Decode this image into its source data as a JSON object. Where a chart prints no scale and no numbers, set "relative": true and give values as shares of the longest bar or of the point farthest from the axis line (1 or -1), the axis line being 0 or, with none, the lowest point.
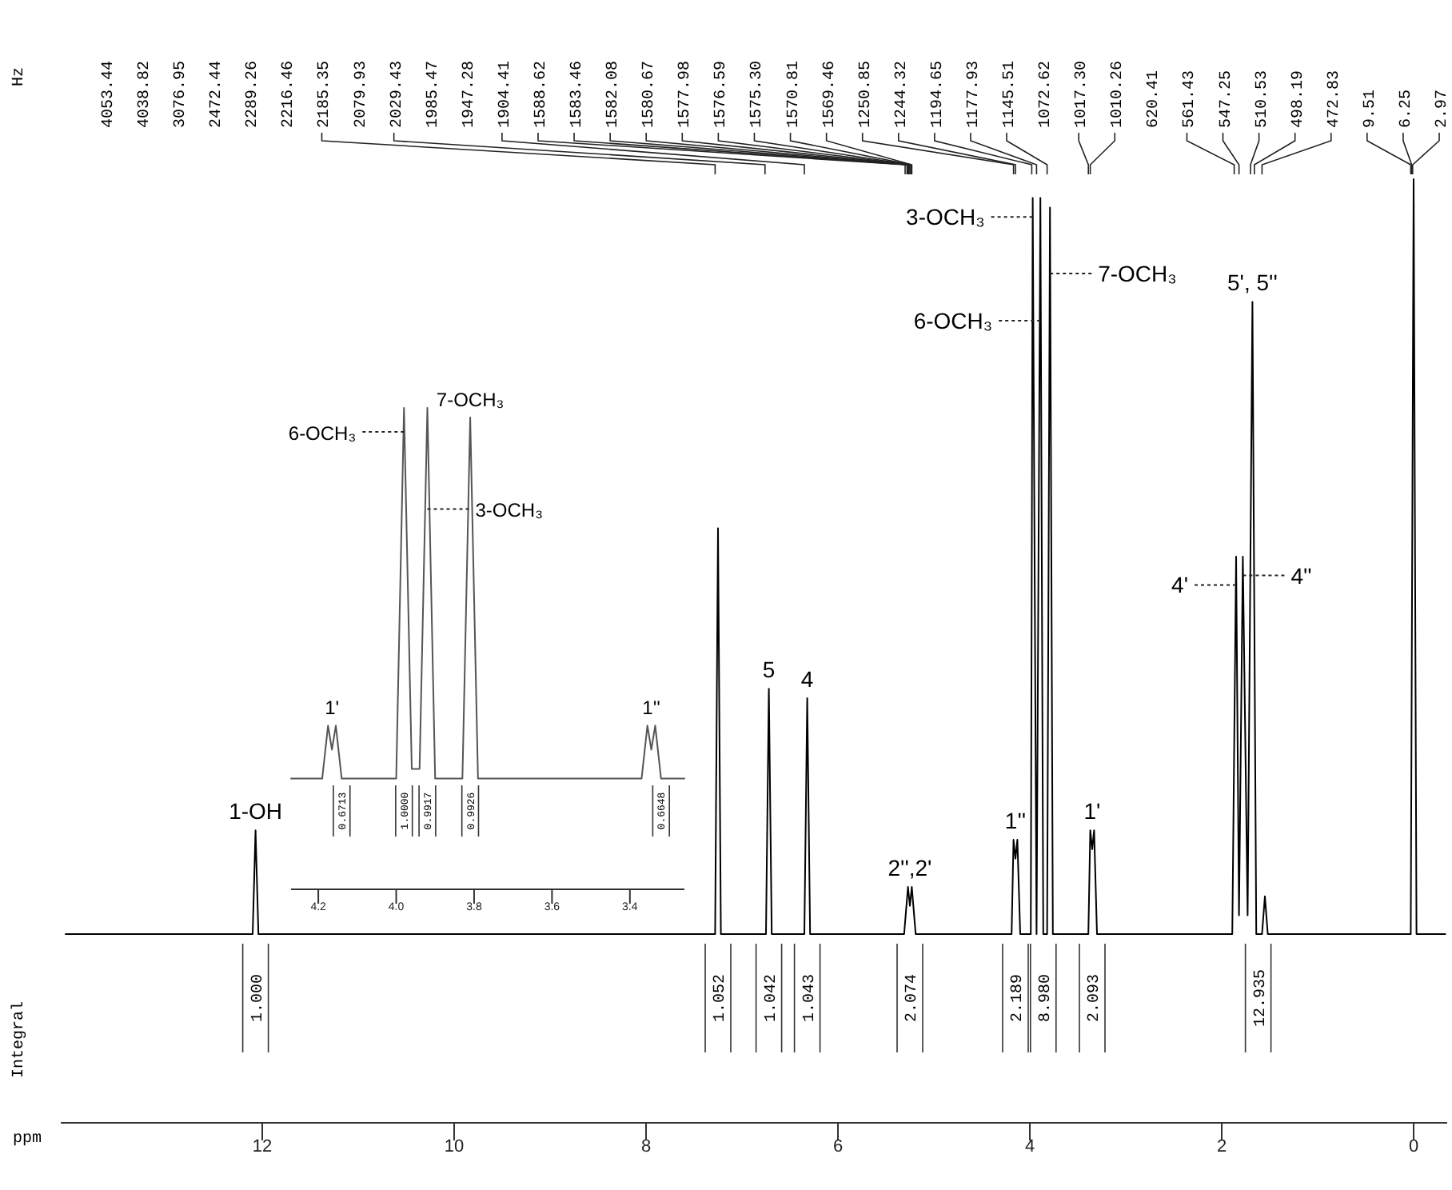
{
  "chart_data": [
    {
      "type": "line",
      "relative": true,
      "xlabel": "ppm",
      "color": "#000000",
      "tick_labels": "x",
      "x": [
        14.05,
        12.1,
        12.07,
        12.04,
        7.28,
        7.25,
        7.22,
        6.75,
        6.72,
        6.69,
        6.35,
        6.32,
        6.29,
        5.31,
        5.27,
        5.25,
        5.23,
        5.19,
        4.19,
        4.17,
        4.15,
        4.13,
        4.1,
        3.99,
        3.97,
        3.93,
        3.89,
        3.86,
        3.82,
        3.79,
        3.76,
        3.39,
        3.37,
        3.35,
        3.33,
        3.3,
        1.89,
        1.85,
        1.82,
        1.78,
        1.73,
        1.68,
        1.64,
        1.58,
        1.55,
        1.52,
        0.03,
        0,
        -0.03,
        -0.33
      ],
      "values": [
        0.2,
        0.2,
        0.31,
        0.2,
        0.2,
        0.63,
        0.2,
        0.2,
        0.46,
        0.2,
        0.2,
        0.45,
        0.2,
        0.2,
        0.25,
        0.23,
        0.25,
        0.2,
        0.2,
        0.3,
        0.28,
        0.3,
        0.2,
        0.2,
        0.98,
        0.2,
        0.98,
        0.2,
        0.2,
        0.97,
        0.2,
        0.2,
        0.31,
        0.29,
        0.31,
        0.2,
        0.2,
        0.6,
        0.22,
        0.6,
        0.22,
        0.87,
        0.2,
        0.2,
        0.24,
        0.2,
        0.2,
        1,
        0.2,
        0.2
      ],
      "xlim": [
        14.1,
        -0.35
      ],
      "xticks": [
        12,
        10,
        8,
        6,
        4,
        2,
        0
      ],
      "annotations": [
        "Hz",
        "Integral",
        "4053.44",
        "4038.82",
        "3076.95",
        "2472.44",
        "2289.26",
        "2216.46",
        {
          "text": "2185.35",
          "x": 7.28
        },
        "2079.93",
        {
          "text": "2029.43",
          "x": 6.76
        },
        "1985.47",
        "1947.28",
        {
          "text": "1904.41",
          "x": 6.35
        },
        {
          "text": "1588.62",
          "x": 5.3
        },
        {
          "text": "1583.46",
          "x": 5.28
        },
        {
          "text": "1582.08",
          "x": 5.27
        },
        {
          "text": "1580.67",
          "x": 5.27
        },
        {
          "text": "1577.98",
          "x": 5.26
        },
        {
          "text": "1576.59",
          "x": 5.26
        },
        {
          "text": "1575.30",
          "x": 5.25
        },
        {
          "text": "1570.81",
          "x": 5.24
        },
        {
          "text": "1569.46",
          "x": 5.23
        },
        {
          "text": "1250.85",
          "x": 4.17
        },
        {
          "text": "1244.32",
          "x": 4.15
        },
        {
          "text": "1194.65",
          "x": 3.98
        },
        {
          "text": "1177.93",
          "x": 3.93
        },
        {
          "text": "1145.51",
          "x": 3.82
        },
        "1072.62",
        {
          "text": "1017.30",
          "x": 3.39
        },
        {
          "text": "1010.26",
          "x": 3.37
        },
        "620.41",
        {
          "text": "561.43",
          "x": 1.87
        },
        {
          "text": "547.25",
          "x": 1.82
        },
        {
          "text": "510.53",
          "x": 1.7
        },
        {
          "text": "498.19",
          "x": 1.66
        },
        {
          "text": "472.83",
          "x": 1.58
        },
        {
          "text": "9.51",
          "x": 0.03
        },
        {
          "text": "6.25",
          "x": 0.02
        },
        {
          "text": "2.97",
          "x": 0.01
        },
        {
          "text": "1-OH",
          "x": 12.07,
          "y": 0.31
        },
        {
          "text": "5",
          "x": 6.72,
          "y": 0.46
        },
        {
          "text": "4",
          "x": 6.32,
          "y": 0.45
        },
        {
          "text": "2'',2'",
          "x": 5.25,
          "y": 0.25
        },
        {
          "text": "1''",
          "x": 4.15,
          "y": 0.3
        },
        {
          "text": "1'",
          "x": 3.35,
          "y": 0.31
        },
        {
          "text": "3-OCH₃",
          "x": 3.97,
          "y": 0.96
        },
        {
          "text": "6-OCH₃",
          "x": 3.89,
          "y": 0.85
        },
        {
          "text": "7-OCH₃",
          "x": 3.79,
          "y": 0.9
        },
        {
          "text": "4'",
          "x": 1.85,
          "y": 0.57
        },
        {
          "text": "4''",
          "x": 1.78,
          "y": 0.58
        },
        {
          "text": "5', 5''",
          "x": 1.68,
          "y": 0.87
        },
        {
          "text": "1.000",
          "x": 12.07,
          "y": 0.2
        },
        {
          "text": "1.052",
          "x": 7.25,
          "y": 0.2
        },
        {
          "text": "1.042",
          "x": 6.72,
          "y": 0.2
        },
        {
          "text": "1.043",
          "x": 6.32,
          "y": 0.2
        },
        {
          "text": "2.074",
          "x": 5.25,
          "y": 0.2
        },
        {
          "text": "2.189",
          "x": 4.15,
          "y": 0.2
        },
        {
          "text": "8.980",
          "x": 3.86,
          "y": 0.2
        },
        {
          "text": "2.093",
          "x": 3.35,
          "y": 0.2
        },
        {
          "text": "12.935",
          "x": 1.62,
          "y": 0.2
        }
      ]
    },
    {
      "type": "line",
      "relative": true,
      "color": "#555555",
      "tick_labels": "x",
      "x": [
        4.27,
        4.19,
        4.175,
        4.165,
        4.155,
        4.14,
        4,
        3.98,
        3.96,
        3.94,
        3.92,
        3.9,
        3.83,
        3.81,
        3.79,
        3.37,
        3.355,
        3.345,
        3.335,
        3.32,
        3.26
      ],
      "values": [
        0.23,
        0.23,
        0.34,
        0.29,
        0.34,
        0.23,
        0.23,
        1,
        0.25,
        0.25,
        1,
        0.23,
        0.23,
        0.98,
        0.23,
        0.23,
        0.34,
        0.29,
        0.34,
        0.23,
        0.23
      ],
      "xlim": [
        4.27,
        3.26
      ],
      "xticks": [
        4.2,
        {
          "value": 4,
          "label": "4.0"
        },
        3.8,
        3.6,
        3.4
      ],
      "annotations": [
        {
          "text": "1'",
          "x": 4.165,
          "y": 0.34
        },
        {
          "text": "1''",
          "x": 3.345,
          "y": 0.34
        },
        {
          "text": "6-OCH₃",
          "x": 3.98,
          "y": 0.95
        },
        {
          "text": "3-OCH₃",
          "x": 3.92,
          "y": 0.79
        },
        {
          "text": "7-OCH₃",
          "x": 3.81,
          "y": 0.98
        },
        {
          "text": "0.6713",
          "x": 4.14,
          "y": 0.23
        },
        {
          "text": "1.0000",
          "x": 3.98,
          "y": 0.23
        },
        {
          "text": "0.9917",
          "x": 3.92,
          "y": 0.23
        },
        {
          "text": "0.9926",
          "x": 3.81,
          "y": 0.23
        },
        {
          "text": "0.6648",
          "x": 3.32,
          "y": 0.23
        }
      ]
    }
  ]
}
